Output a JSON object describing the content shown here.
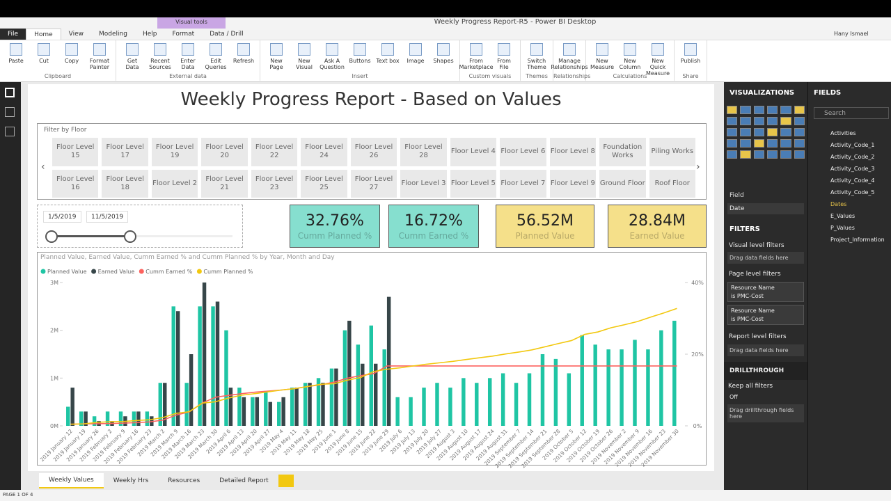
{
  "window": {
    "title": "Weekly Progress Report-R5 - Power BI Desktop",
    "context_tab": "Visual tools",
    "user": "Hany Ismael"
  },
  "ribbon": {
    "tabs": [
      "File",
      "Home",
      "View",
      "Modeling",
      "Help",
      "Format",
      "Data / Drill"
    ],
    "groups": [
      {
        "name": "Clipboard",
        "buttons": [
          "Paste",
          "Cut",
          "Copy",
          "Format Painter"
        ]
      },
      {
        "name": "External data",
        "buttons": [
          "Get Data",
          "Recent Sources",
          "Enter Data",
          "Edit Queries",
          "Refresh"
        ]
      },
      {
        "name": "Insert",
        "buttons": [
          "New Page",
          "New Visual",
          "Ask A Question",
          "Buttons",
          "Text box",
          "Image",
          "Shapes"
        ]
      },
      {
        "name": "Custom visuals",
        "buttons": [
          "From Marketplace",
          "From File"
        ]
      },
      {
        "name": "Themes",
        "buttons": [
          "Switch Theme"
        ]
      },
      {
        "name": "Relationships",
        "buttons": [
          "Manage Relationships"
        ]
      },
      {
        "name": "Calculations",
        "buttons": [
          "New Measure",
          "New Column",
          "New Quick Measure"
        ]
      },
      {
        "name": "Share",
        "buttons": [
          "Publish"
        ]
      }
    ]
  },
  "report": {
    "title": "Weekly Progress Report - Based on Values",
    "floor_slicer": {
      "title": "Filter by Floor",
      "rows": [
        [
          "Floor Level 15",
          "Floor Level 17",
          "Floor Level 19",
          "Floor Level 20",
          "Floor Level 22",
          "Floor Level 24",
          "Floor Level 26",
          "Floor Level 28",
          "Floor Level 4",
          "Floor Level 6",
          "Floor Level 8",
          "Foundation Works",
          "Piling Works"
        ],
        [
          "Floor Level 16",
          "Floor Level 18",
          "Floor Level 2",
          "Floor Level 21",
          "Floor Level 23",
          "Floor Level 25",
          "Floor Level 27",
          "Floor Level 3",
          "Floor Level 5",
          "Floor Level 7",
          "Floor Level 9",
          "Ground Floor",
          "Roof Floor"
        ]
      ]
    },
    "date_slicer": {
      "start": "1/5/2019",
      "end": "11/5/2019"
    },
    "cards": [
      {
        "value": "32.76%",
        "label": "Cumm Planned %"
      },
      {
        "value": "16.72%",
        "label": "Cumm Earned %"
      },
      {
        "value": "56.52M",
        "label": "Planned Value"
      },
      {
        "value": "28.84M",
        "label": "Earned Value"
      }
    ]
  },
  "chart_data": {
    "type": "combo",
    "title": "Planned Value, Earned Value, Cumm Earned % and Cumm Planned % by Year, Month and Day",
    "categories": [
      "2019 January 12",
      "2019 January 19",
      "2019 January 26",
      "2019 February 2",
      "2019 February 9",
      "2019 February 16",
      "2019 February 23",
      "2019 March 2",
      "2019 March 9",
      "2019 March 16",
      "2019 March 23",
      "2019 March 30",
      "2019 April 6",
      "2019 April 13",
      "2019 April 20",
      "2019 April 27",
      "2019 May 4",
      "2019 May 11",
      "2019 May 18",
      "2019 May 25",
      "2019 June 1",
      "2019 June 8",
      "2019 June 15",
      "2019 June 22",
      "2019 June 29",
      "2019 July 6",
      "2019 July 13",
      "2019 July 20",
      "2019 July 27",
      "2019 August 3",
      "2019 August 10",
      "2019 August 17",
      "2019 August 24",
      "2019 August 31",
      "2019 September 7",
      "2019 September 14",
      "2019 September 21",
      "2019 September 28",
      "2019 October 5",
      "2019 October 12",
      "2019 October 19",
      "2019 October 26",
      "2019 November 2",
      "2019 November 9",
      "2019 November 16",
      "2019 November 23",
      "2019 November 30"
    ],
    "series": [
      {
        "name": "Planned Value",
        "kind": "bar",
        "color": "#1fc5a4",
        "values": [
          0.4,
          0.3,
          0.2,
          0.3,
          0.3,
          0.3,
          0.3,
          0.9,
          2.5,
          0.9,
          2.5,
          2.5,
          2.0,
          0.8,
          0.6,
          0.7,
          0.5,
          0.8,
          0.9,
          1.0,
          1.2,
          2.0,
          1.7,
          2.1,
          1.6,
          0.6,
          0.6,
          0.8,
          0.9,
          0.8,
          1.0,
          0.9,
          1.0,
          1.1,
          0.9,
          1.1,
          1.5,
          1.4,
          1.1,
          1.9,
          1.7,
          1.6,
          1.6,
          1.8,
          1.6,
          2.0,
          2.2
        ]
      },
      {
        "name": "Earned Value",
        "kind": "bar",
        "color": "#374649",
        "values": [
          0.8,
          0.3,
          0.1,
          0.1,
          0.2,
          0.3,
          0.2,
          0.9,
          2.4,
          1.5,
          3.0,
          2.6,
          0.8,
          0.6,
          0.6,
          0.5,
          0.6,
          0.8,
          0.9,
          0.9,
          1.2,
          2.2,
          1.3,
          1.3,
          2.7,
          null,
          null,
          null,
          null,
          null,
          null,
          null,
          null,
          null,
          null,
          null,
          null,
          null,
          null,
          null,
          null,
          null,
          null,
          null,
          null,
          null,
          null
        ]
      },
      {
        "name": "Cumm Earned %",
        "kind": "line",
        "axis": "y2",
        "color": "#fd625e",
        "values": [
          0.44,
          0.56,
          0.6,
          0.65,
          0.75,
          0.9,
          1.1,
          1.6,
          3.0,
          3.9,
          6.4,
          8.0,
          8.5,
          9.0,
          9.4,
          9.7,
          10.0,
          10.39,
          10.99,
          11.5,
          12.2,
          13.3,
          14.0,
          14.6,
          16.72,
          16.72,
          16.72,
          16.72,
          16.72,
          16.72,
          16.72,
          16.72,
          16.72,
          16.72,
          16.72,
          16.72,
          16.72,
          16.72,
          16.72,
          16.72,
          16.72,
          16.72,
          16.72,
          16.72,
          16.72,
          16.72,
          16.72
        ]
      },
      {
        "name": "Cumm Planned %",
        "kind": "line",
        "axis": "y2",
        "color": "#f2c80f",
        "values": [
          0.44,
          0.56,
          0.97,
          1.15,
          1.21,
          1.49,
          1.7,
          2.3,
          3.48,
          3.96,
          6.35,
          6.74,
          7.78,
          8.57,
          9.0,
          9.5,
          10.0,
          10.39,
          10.99,
          11.61,
          11.76,
          12.75,
          13.5,
          15.17,
          15.8,
          16.2,
          16.72,
          17.2,
          17.6,
          18.0,
          18.5,
          19.0,
          19.45,
          20.06,
          20.6,
          21.2,
          22.08,
          22.96,
          23.8,
          25.52,
          26.2,
          27.38,
          28.2,
          29.1,
          30.33,
          31.5,
          32.76
        ]
      }
    ],
    "ylim": [
      0,
      3
    ],
    "yticks": [
      {
        "value": 0,
        "label": "0M"
      },
      {
        "value": 1,
        "label": "1M"
      },
      {
        "value": 2,
        "label": "2M"
      },
      {
        "value": 3,
        "label": "3M"
      }
    ],
    "y2lim": [
      0,
      40
    ],
    "y2ticks": [
      {
        "value": 0,
        "label": "0%"
      },
      {
        "value": 20,
        "label": "20%"
      },
      {
        "value": 40,
        "label": "40%"
      }
    ]
  },
  "visualizations": {
    "title": "VISUALIZATIONS",
    "field_label": "Field",
    "field_value": "Date"
  },
  "filters": {
    "title": "FILTERS",
    "visual_level": "Visual level filters",
    "visual_drop": "Drag data fields here",
    "page_level": "Page level filters",
    "cards": [
      {
        "field": "Resource Name",
        "condition": "is PMC-Cost"
      },
      {
        "field": "Resource Name",
        "condition": "is PMC-Cost"
      }
    ],
    "report_level": "Report level filters",
    "report_drop": "Drag data fields here",
    "drillthrough": "DRILLTHROUGH",
    "keep_all": "Keep all filters",
    "toggle": "Off",
    "drill_drop": "Drag drillthrough fields here"
  },
  "fields": {
    "title": "FIELDS",
    "search": "Search",
    "tables": [
      "Activities",
      "Activity_Code_1",
      "Activity_Code_2",
      "Activity_Code_3",
      "Activity_Code_4",
      "Activity_Code_5",
      "Dates",
      "E_Values",
      "P_Values",
      "Project_Information"
    ]
  },
  "pages": {
    "tabs": [
      "Weekly Values",
      "Weekly Hrs",
      "Resources",
      "Detailed Report"
    ],
    "status": "PAGE 1 OF 4"
  }
}
